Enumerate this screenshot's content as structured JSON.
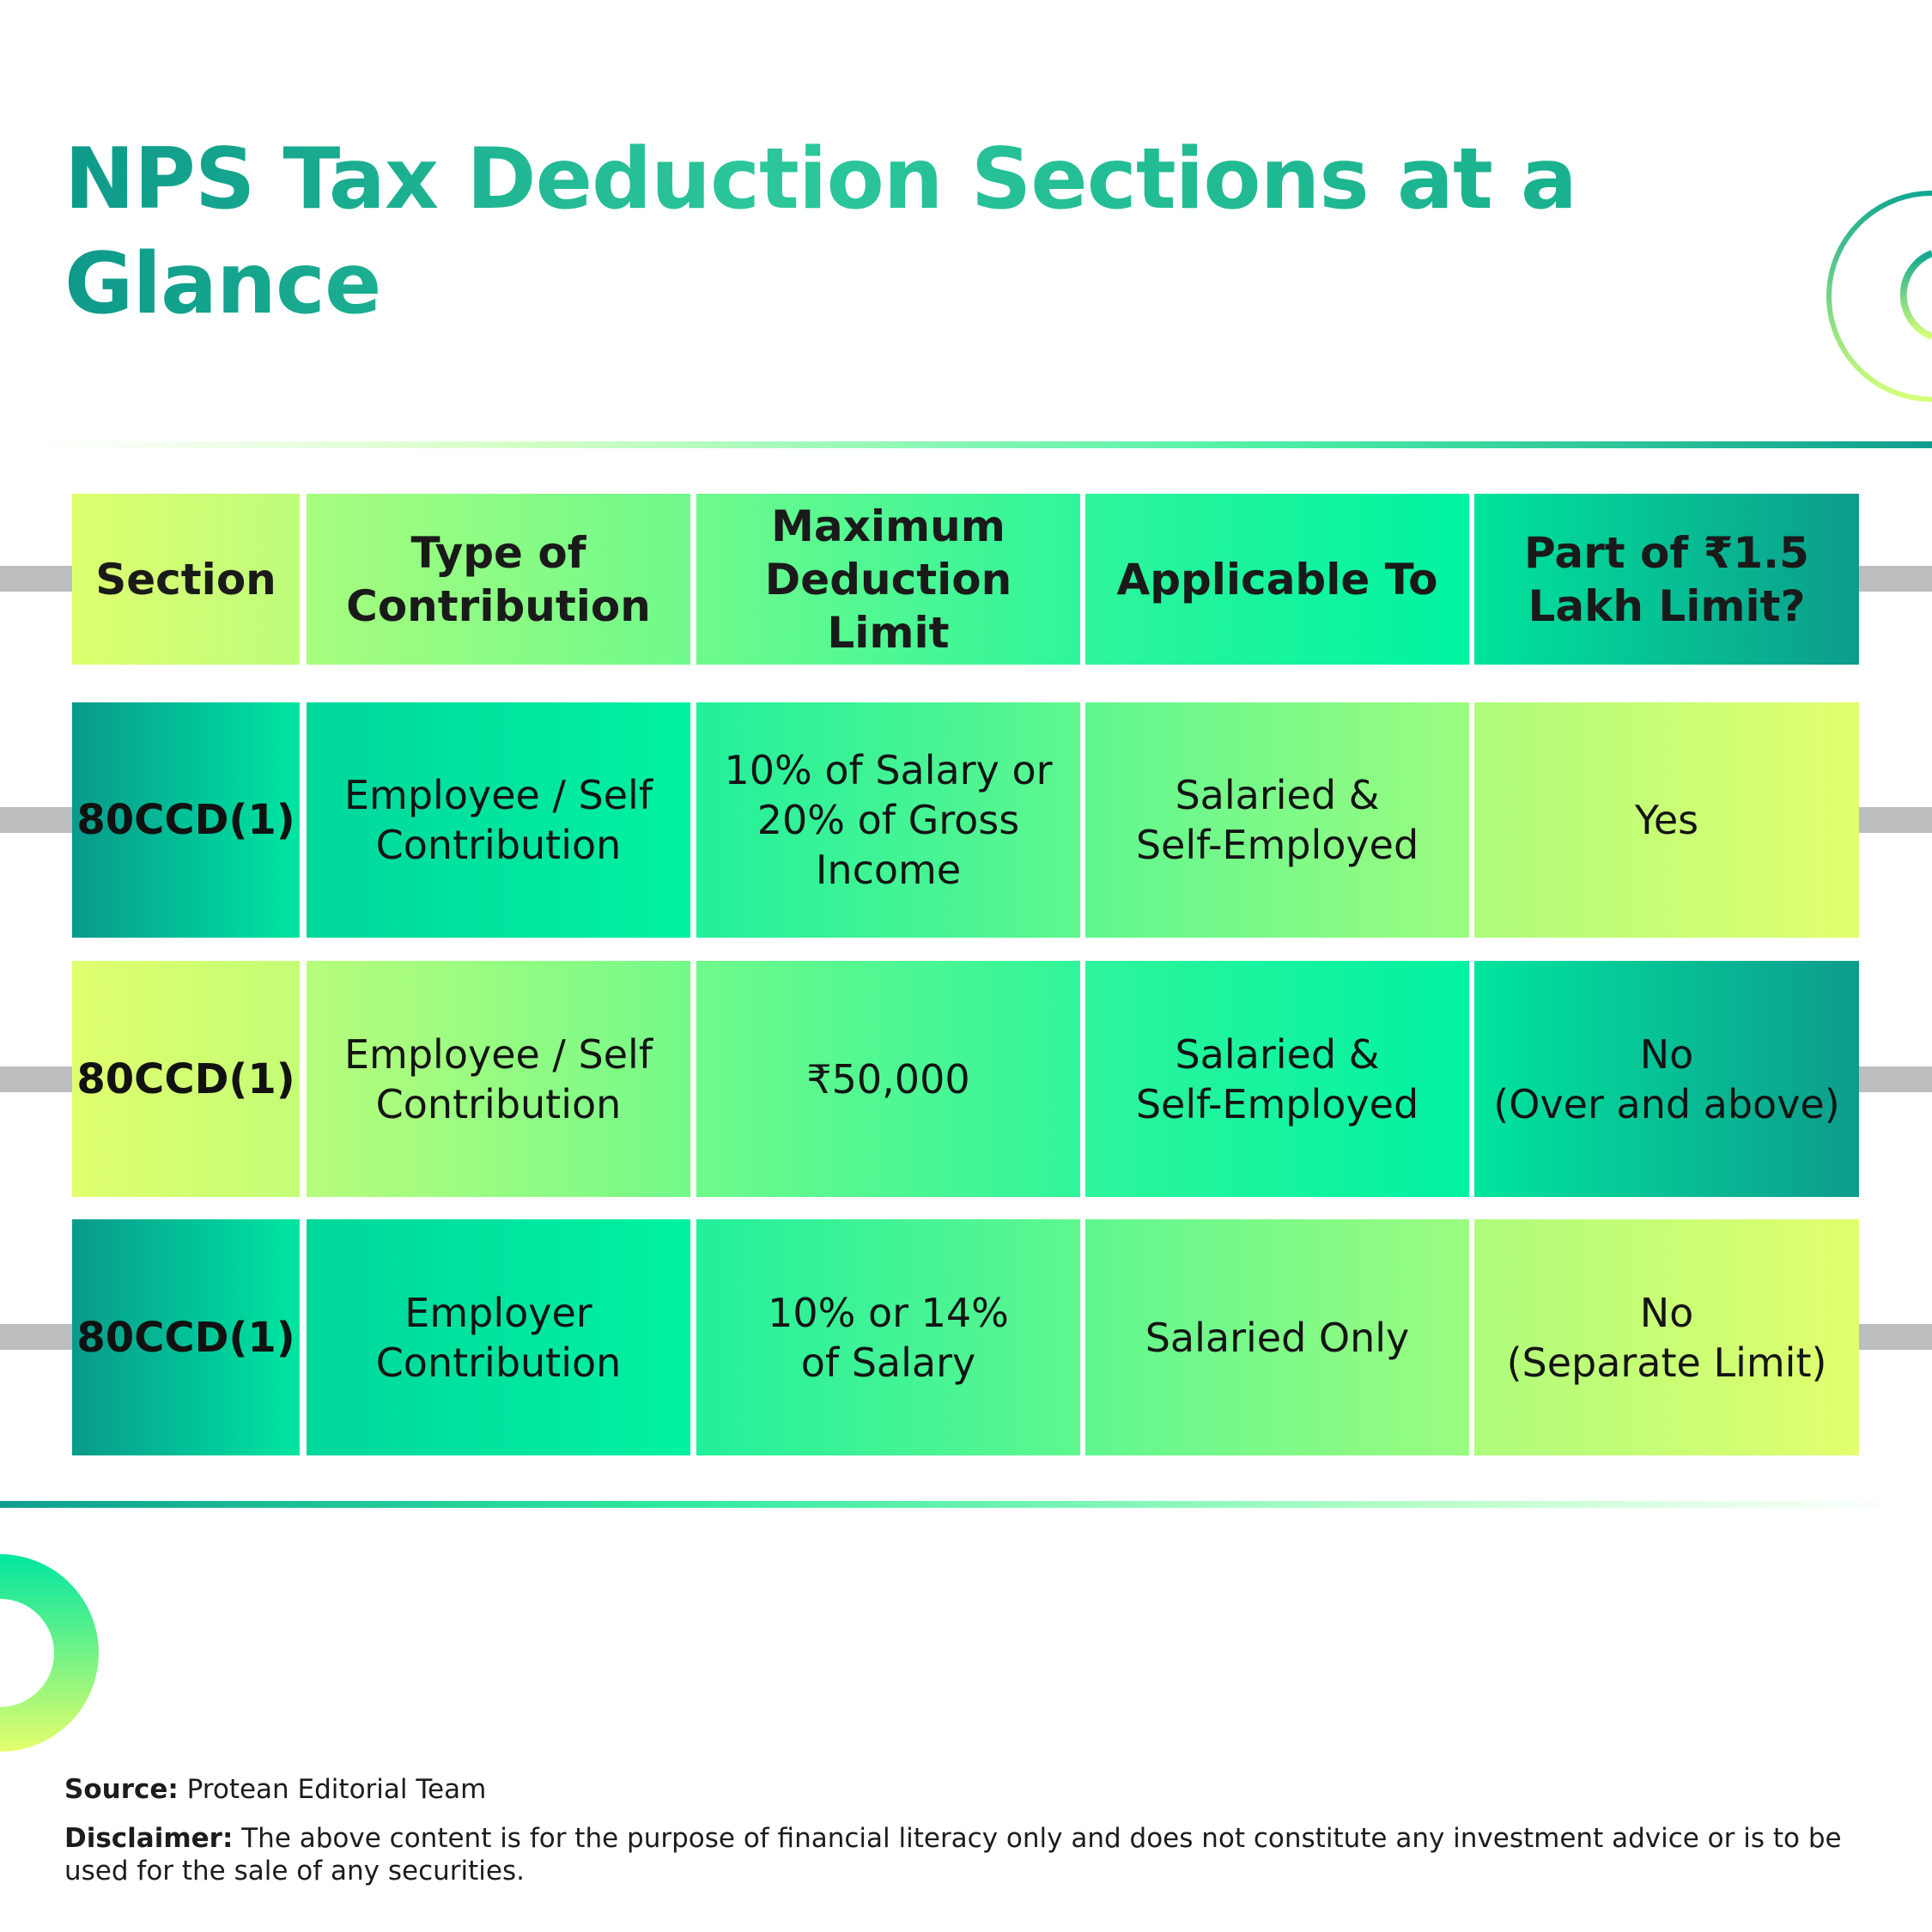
{
  "title": "NPS Tax Deduction Sections at a Glance",
  "table": {
    "headers": [
      "Section",
      "Type of\nContribution",
      "Maximum\nDeduction Limit",
      "Applicable To",
      "Part of ₹1.5\nLakh Limit?"
    ],
    "rows": [
      [
        "80CCD(1)",
        "Employee / Self\nContribution",
        "10% of Salary or\n20% of Gross\nIncome",
        "Salaried &\nSelf-Employed",
        "Yes"
      ],
      [
        "80CCD(1)",
        "Employee / Self\nContribution",
        "₹50,000",
        "Salaried &\nSelf-Employed",
        "No\n(Over and above)"
      ],
      [
        "80CCD(1)",
        "Employer\nContribution",
        "10% or 14%\nof Salary",
        "Salaried Only",
        "No\n(Separate Limit)"
      ]
    ]
  },
  "footer": {
    "source_label": "Source:",
    "source_text": "Protean Editorial Team",
    "disclaimer_label": "Disclaimer:",
    "disclaimer_text": "The above content is for the purpose of financial literacy only and does not constitute any investment advice or is to be used for the sale of any securities."
  },
  "colors": {
    "title": "#0e9a8a",
    "lime": "#e0ff6e",
    "mint": "#00f2a1",
    "teal": "#0d9c8c",
    "connector": "#bcbdbf"
  }
}
